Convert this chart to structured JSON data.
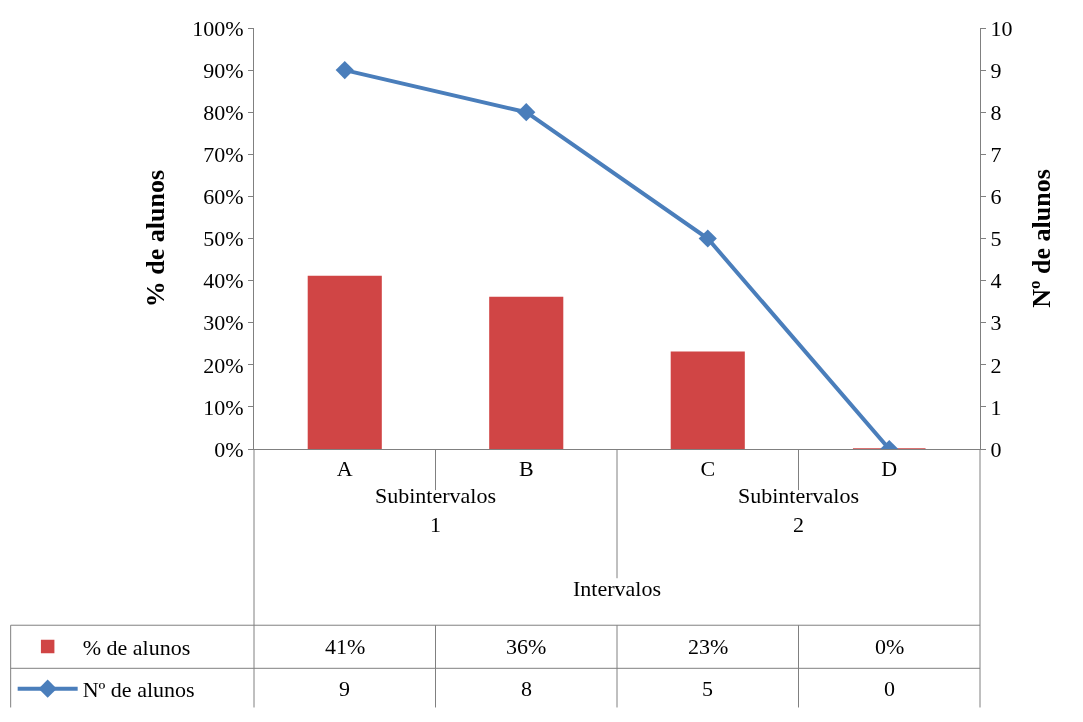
{
  "chart_data": {
    "type": "bar",
    "xlabel": "Intervalos",
    "ylabel": "% de alunos",
    "y2label": "Nº de alunos",
    "categories": [
      "A",
      "B",
      "C",
      "D"
    ],
    "annotations": [
      "Subintervalos 1",
      "Subintervalos 2"
    ],
    "series": [
      {
        "name": "% de alunos",
        "color": "#d04545",
        "values": [
          41,
          36,
          23,
          0
        ],
        "value_labels": [
          "41%",
          "36%",
          "23%",
          "0%"
        ]
      },
      {
        "name": "Nº de alunos",
        "type": "line",
        "axis": "y2",
        "color": "#4a7ebb",
        "marker": "diamond",
        "values": [
          9,
          8,
          5,
          0
        ],
        "value_labels": [
          "9",
          "8",
          "5",
          "0"
        ]
      }
    ],
    "ylim": [
      0,
      100
    ],
    "yticks": [
      {
        "value": 0,
        "label": "0%"
      },
      {
        "value": 10,
        "label": "10%"
      },
      {
        "value": 20,
        "label": "20%"
      },
      {
        "value": 30,
        "label": "30%"
      },
      {
        "value": 40,
        "label": "40%"
      },
      {
        "value": 50,
        "label": "50%"
      },
      {
        "value": 60,
        "label": "60%"
      },
      {
        "value": 70,
        "label": "70%"
      },
      {
        "value": 80,
        "label": "80%"
      },
      {
        "value": 90,
        "label": "90%"
      },
      {
        "value": 100,
        "label": "100%"
      }
    ],
    "y2lim": [
      0,
      10
    ],
    "y2ticks": [
      0,
      1,
      2,
      3,
      4,
      5,
      6,
      7,
      8,
      9,
      10
    ],
    "legend": "bottom left"
  }
}
